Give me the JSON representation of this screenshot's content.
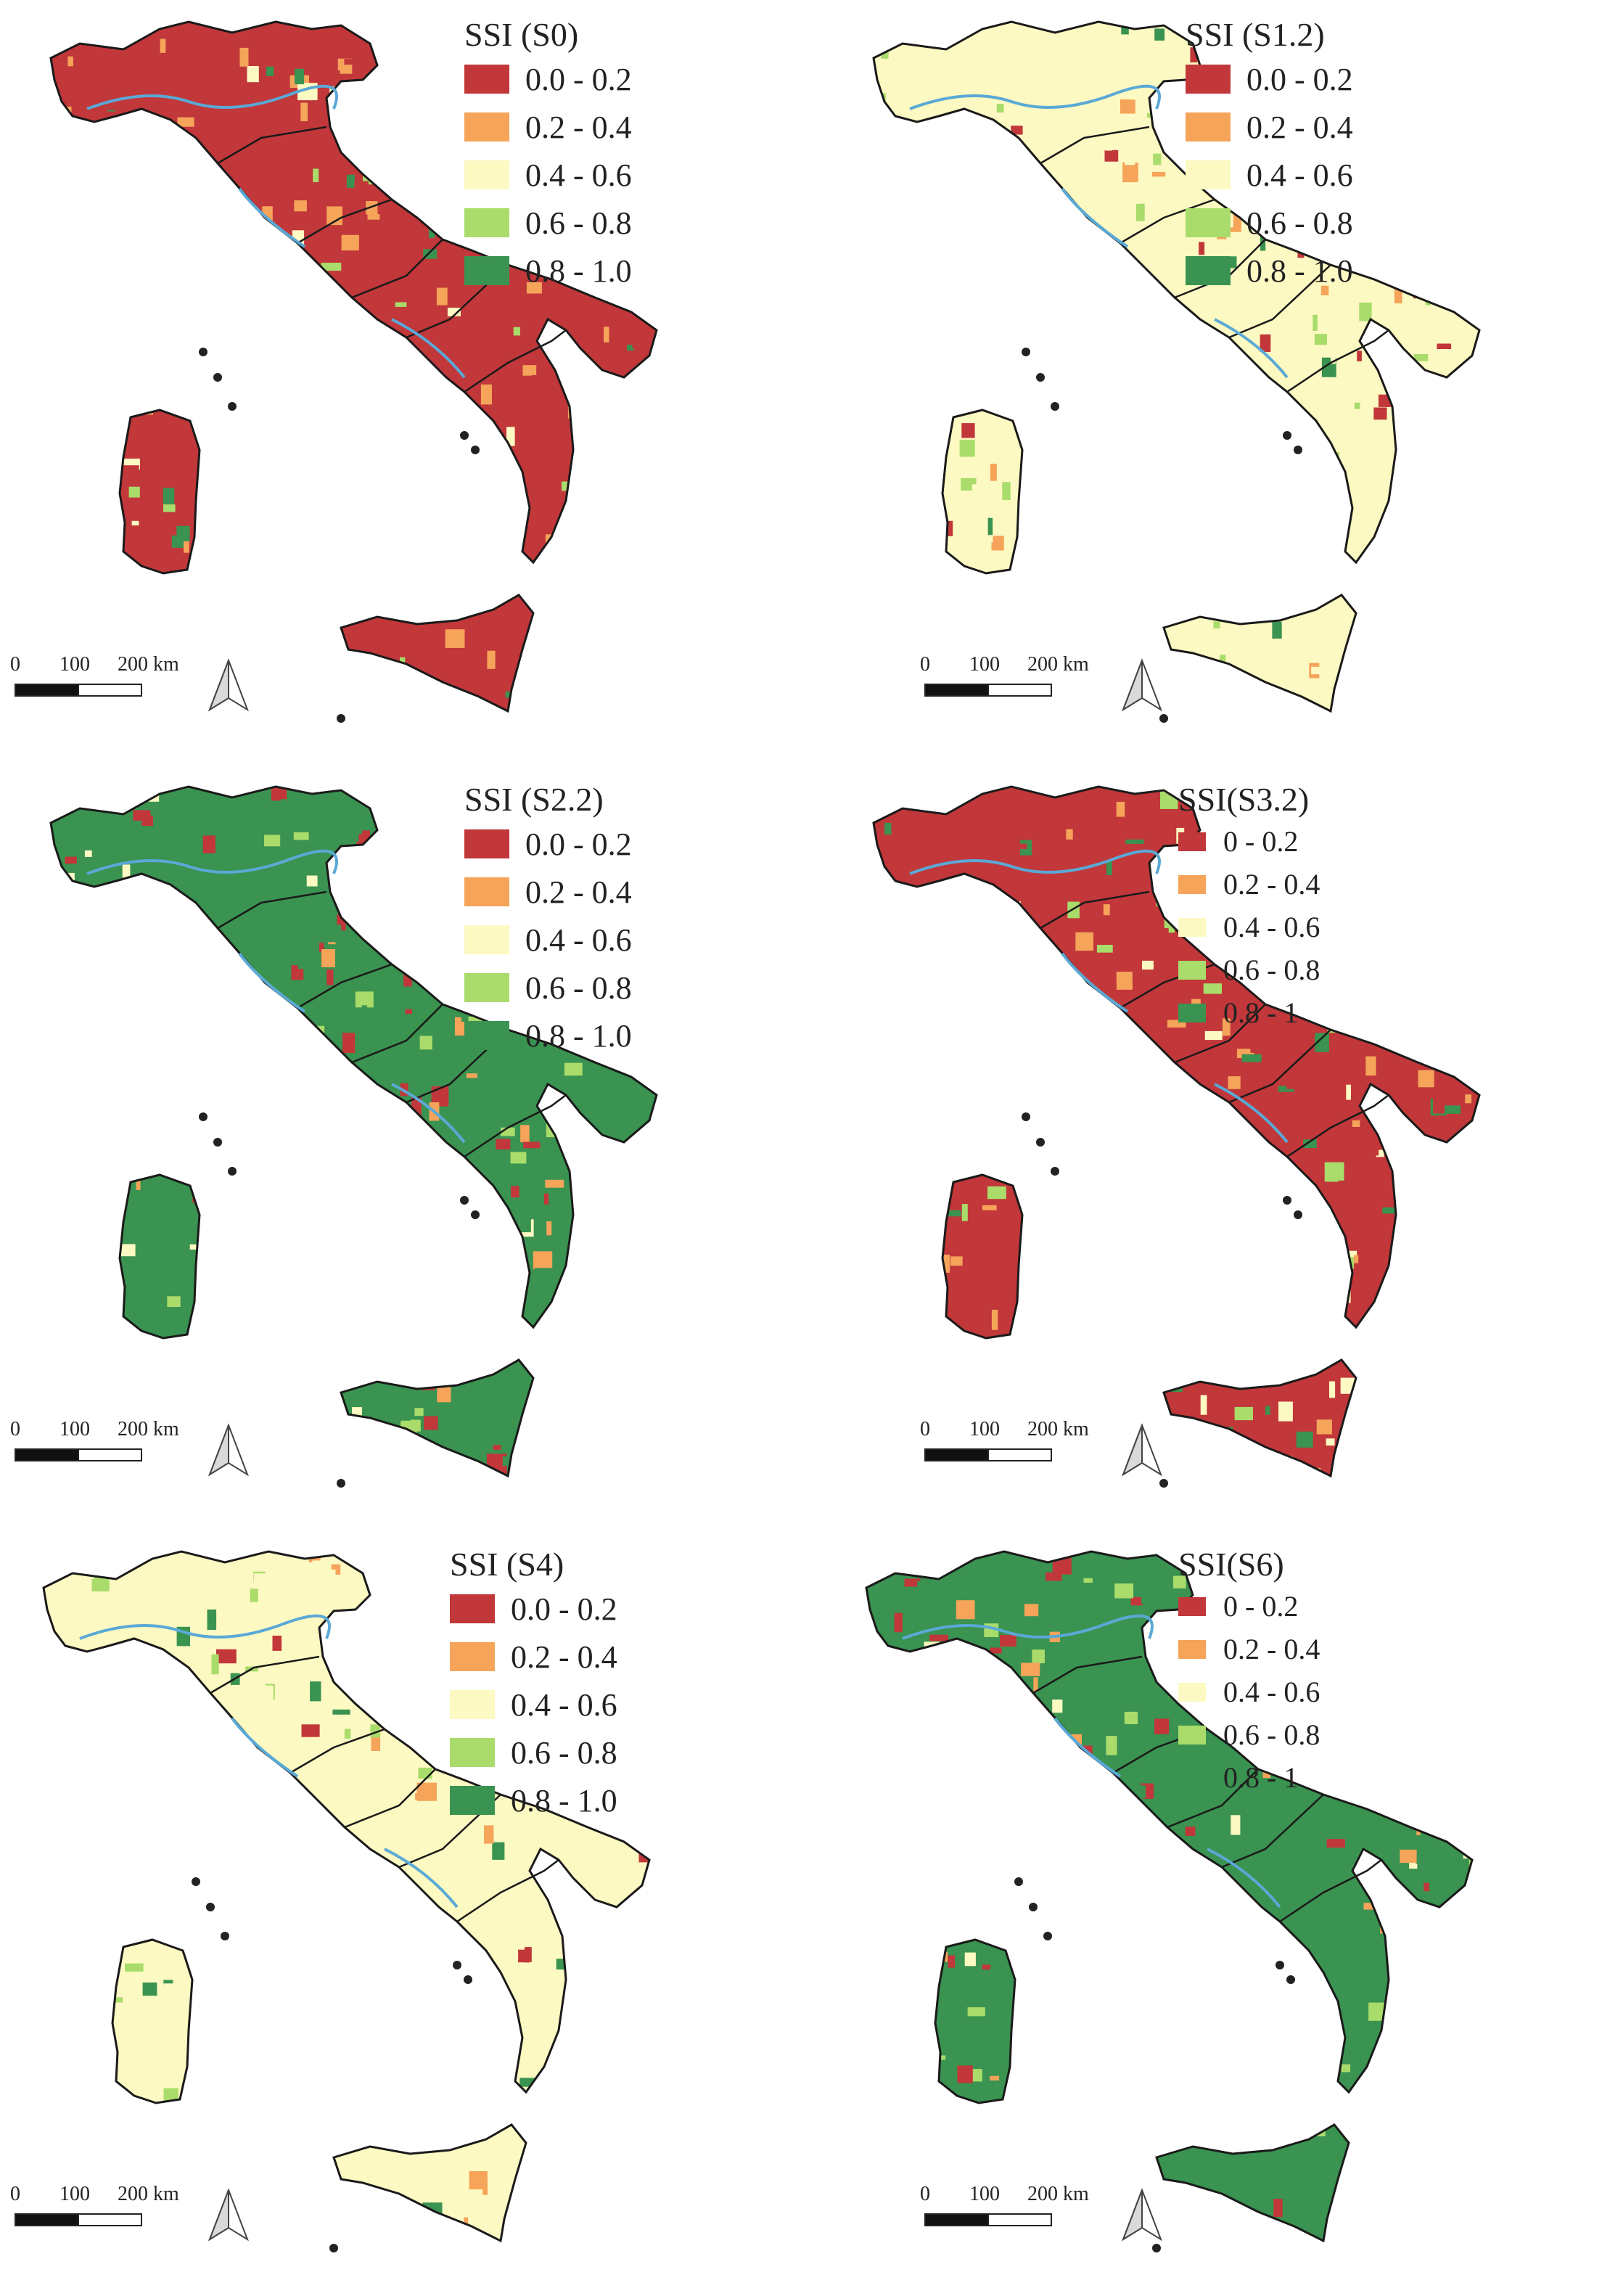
{
  "legend_colors": [
    "#c1373a",
    "#f5a45a",
    "#fdf9c2",
    "#a9dc6b",
    "#3a9350"
  ],
  "region_border_color": "#1a1a1a",
  "river_color": "#5aa9d6",
  "scale": {
    "label_0": "0",
    "label_100": "100",
    "label_200": "200 km"
  },
  "north_icon": "north-arrow-icon",
  "panels": [
    {
      "id": "s0",
      "title": "SSI (S0)",
      "style": "full",
      "dominant_class": 0,
      "labels": [
        "0.0 - 0.2",
        "0.2 - 0.4",
        "0.4 - 0.6",
        "0.6 - 0.8",
        "0.8 - 1.0"
      ]
    },
    {
      "id": "s1-2",
      "title": "SSI (S1.2)",
      "style": "full",
      "dominant_class": 2,
      "labels": [
        "0.0 - 0.2",
        "0.2 - 0.4",
        "0.4 - 0.6",
        "0.6 - 0.8",
        "0.8 - 1.0"
      ]
    },
    {
      "id": "s2-2",
      "title": "SSI (S2.2)",
      "style": "full",
      "dominant_class": 4,
      "labels": [
        "0.0 - 0.2",
        "0.2 - 0.4",
        "0.4 - 0.6",
        "0.6 - 0.8",
        "0.8 - 1.0"
      ]
    },
    {
      "id": "s3-2",
      "title": "SSI(S3.2)",
      "style": "compact",
      "dominant_class": 0,
      "labels": [
        "0 - 0.2",
        "0.2 - 0.4",
        "0.4 - 0.6",
        "0.6 - 0.8",
        "0.8 - 1"
      ]
    },
    {
      "id": "s4",
      "title": "SSI (S4)",
      "style": "full",
      "dominant_class": 2,
      "labels": [
        "0.0 - 0.2",
        "0.2 - 0.4",
        "0.4 - 0.6",
        "0.6 - 0.8",
        "0.8 - 1.0"
      ]
    },
    {
      "id": "s6",
      "title": "SSI(S6)",
      "style": "compact",
      "dominant_class": 4,
      "labels": [
        "0 - 0.2",
        "0.2 - 0.4",
        "0.4 - 0.6",
        "0.6 - 0.8",
        "0.8 - 1"
      ]
    }
  ]
}
